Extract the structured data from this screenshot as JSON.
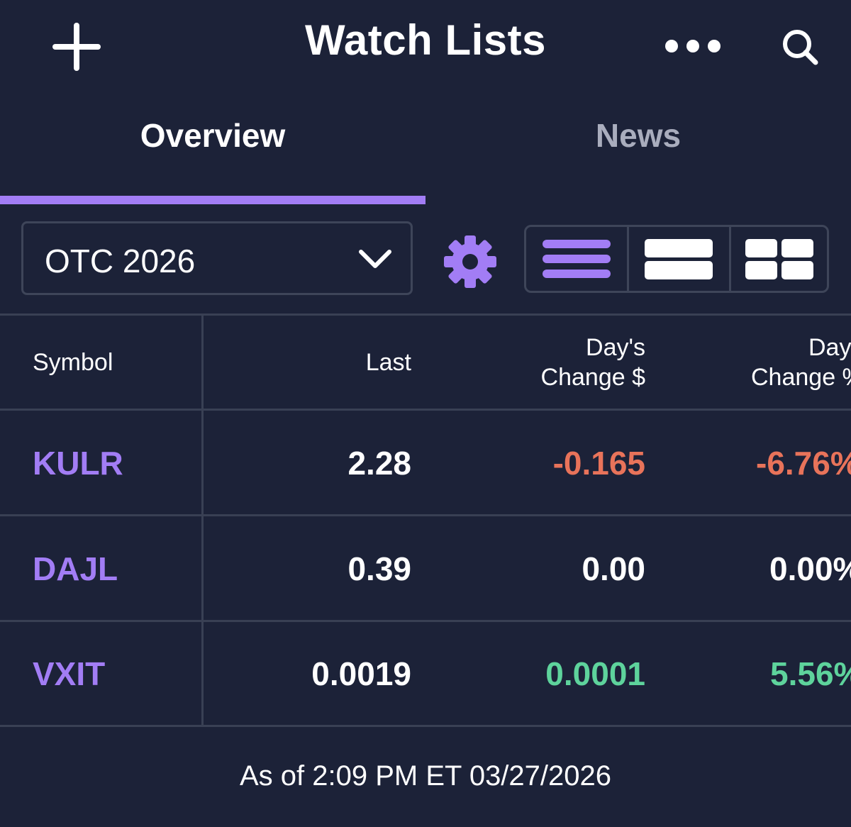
{
  "header": {
    "title": "Watch Lists",
    "add_icon": "plus-icon",
    "more_icon": "more-horizontal-icon",
    "search_icon": "search-icon"
  },
  "tabs": [
    {
      "label": "Overview",
      "active": true
    },
    {
      "label": "News",
      "active": false
    }
  ],
  "controls": {
    "selected_list": "OTC 2026",
    "settings_icon": "gear-icon",
    "view_modes": [
      "list-view-icon",
      "card-view-icon",
      "grid-view-icon"
    ],
    "active_view": 0
  },
  "table": {
    "columns": {
      "symbol": "Symbol",
      "last": "Last",
      "change_dollar": [
        "Day's",
        "Change $"
      ],
      "change_pct": [
        "Day's",
        "Change %"
      ]
    },
    "rows": [
      {
        "symbol": "KULR",
        "last": "2.28",
        "change": "-0.165",
        "change_pct": "-6.76%",
        "direction": "down"
      },
      {
        "symbol": "DAJL",
        "last": "0.39",
        "change": "0.00",
        "change_pct": "0.00%",
        "direction": "flat"
      },
      {
        "symbol": "VXIT",
        "last": "0.0019",
        "change": "0.0001",
        "change_pct": "5.56%",
        "direction": "up"
      }
    ]
  },
  "footer": {
    "timestamp": "As of 2:09 PM ET 03/27/2026"
  },
  "colors": {
    "background": "#1c2238",
    "accent": "#a27df5",
    "negative": "#e8735a",
    "positive": "#5ed39c",
    "divider": "#394054"
  }
}
